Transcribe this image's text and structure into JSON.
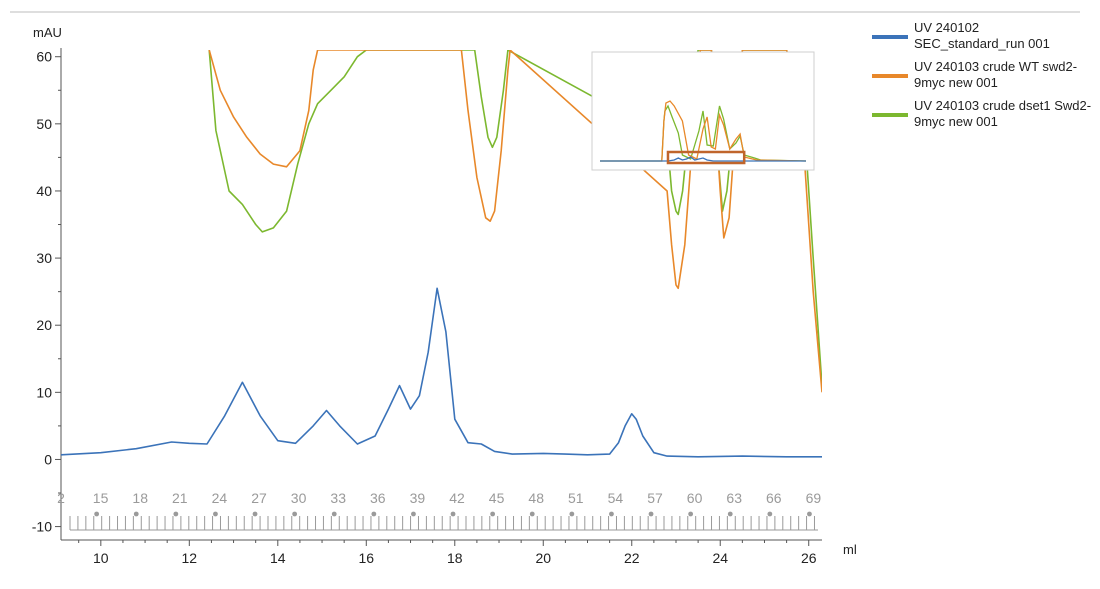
{
  "chart_data": {
    "type": "line",
    "ylabel": "mAU",
    "xlabel": "ml",
    "xlim": [
      9.1,
      26.3
    ],
    "ylim": [
      -12,
      61
    ],
    "x_ticks": [
      10,
      12,
      14,
      16,
      18,
      20,
      22,
      24,
      26
    ],
    "y_ticks": [
      -10,
      0,
      10,
      20,
      30,
      40,
      50,
      60
    ],
    "fraction_labels": [
      "2",
      "15",
      "18",
      "21",
      "24",
      "27",
      "30",
      "33",
      "36",
      "39",
      "42",
      "45",
      "48",
      "51",
      "54",
      "57",
      "60",
      "63",
      "66",
      "69"
    ],
    "series": [
      {
        "name": "UV 240102 SEC_standard_run 001",
        "color": "#3b73b9",
        "x": [
          9.1,
          10.0,
          10.8,
          11.6,
          12.0,
          12.4,
          12.8,
          13.2,
          13.6,
          14.0,
          14.4,
          14.8,
          15.1,
          15.4,
          15.8,
          16.2,
          16.5,
          16.75,
          17.0,
          17.2,
          17.4,
          17.6,
          17.8,
          18.0,
          18.3,
          18.6,
          18.9,
          19.3,
          20.0,
          20.5,
          21.0,
          21.5,
          21.7,
          21.85,
          22.0,
          22.1,
          22.25,
          22.5,
          22.8,
          23.5,
          24.5,
          25.5,
          26.3
        ],
        "y": [
          0.7,
          1.0,
          1.6,
          2.6,
          2.4,
          2.3,
          6.5,
          11.5,
          6.5,
          2.8,
          2.4,
          5.0,
          7.3,
          5.0,
          2.3,
          3.5,
          7.5,
          11.0,
          7.5,
          9.5,
          16.0,
          25.5,
          19.0,
          6.0,
          2.5,
          2.3,
          1.2,
          0.8,
          0.9,
          0.8,
          0.7,
          0.8,
          2.5,
          5.0,
          6.8,
          6.0,
          3.5,
          1.0,
          0.5,
          0.4,
          0.5,
          0.4,
          0.4
        ]
      },
      {
        "name": "UV 240103 crude WT swd2-9myc new 001",
        "color": "#e8882a",
        "x": [
          12.45,
          12.7,
          13.0,
          13.3,
          13.6,
          13.9,
          14.2,
          14.5,
          14.7,
          14.8,
          14.9,
          15.0,
          15.2,
          15.4,
          15.7,
          16.0,
          16.2,
          16.3,
          16.4,
          18.15,
          18.3,
          18.5,
          18.7,
          18.8,
          18.9,
          19.05,
          19.2,
          19.25,
          22.8,
          22.9,
          23.0,
          23.05,
          23.2,
          23.4,
          23.55,
          23.8,
          24.0,
          24.08,
          24.2,
          24.35,
          24.5,
          25.5,
          25.9,
          26.1,
          26.3
        ],
        "y": [
          61,
          55,
          51,
          48,
          45.5,
          44,
          43.6,
          46,
          52,
          58,
          61,
          61,
          61,
          61,
          61,
          61,
          61,
          61,
          61,
          61,
          52,
          42,
          36,
          35.5,
          37,
          46,
          58,
          61,
          40,
          32,
          26,
          25.5,
          32,
          50,
          61,
          61,
          40,
          33,
          36,
          50,
          61,
          61,
          45,
          25,
          10
        ]
      },
      {
        "name": "UV 240103 crude dset1 Swd2-9myc new 001",
        "color": "#7cb82f",
        "x": [
          12.45,
          12.6,
          12.9,
          13.2,
          13.5,
          13.65,
          13.9,
          14.2,
          14.45,
          14.7,
          14.9,
          15.2,
          15.5,
          15.8,
          16.0,
          16.2,
          16.3,
          16.4,
          18.45,
          18.6,
          18.75,
          18.85,
          18.95,
          19.1,
          19.2,
          22.8,
          22.9,
          23.0,
          23.05,
          23.15,
          23.3,
          23.5,
          23.8,
          23.95,
          24.05,
          24.15,
          24.3,
          24.5,
          25.5,
          25.9,
          26.1,
          26.3
        ],
        "y": [
          61,
          49,
          40,
          38,
          35,
          33.9,
          34.5,
          37,
          44,
          50,
          53,
          55,
          57,
          60,
          61,
          61,
          61,
          61,
          61,
          54,
          48,
          46.5,
          48,
          55,
          61,
          48,
          40,
          37,
          36.5,
          40,
          50,
          61,
          61,
          45,
          37,
          40,
          50,
          61,
          61,
          50,
          30,
          11
        ]
      }
    ],
    "overview_inset": {
      "series_colors": [
        "#3b73b9",
        "#e8882a",
        "#7cb82f"
      ],
      "highlight_color": "#c0652b"
    },
    "grid": false,
    "legend_position": "right"
  }
}
